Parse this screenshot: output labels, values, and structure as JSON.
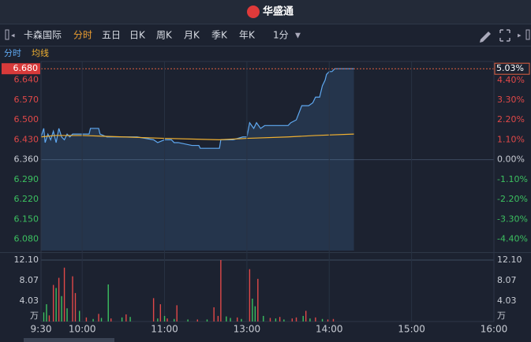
{
  "header": {
    "brand": "华盛通"
  },
  "toolbar": {
    "stock_name": "卡森国际",
    "tabs": [
      "分时",
      "五日",
      "日K",
      "周K",
      "月K",
      "季K",
      "年K"
    ],
    "interval": "1分"
  },
  "chart_data": [
    {
      "type": "line",
      "series": [
        {
          "name": "分时",
          "color": "#5fa8f0",
          "x": [
            0,
            2,
            3,
            5,
            7,
            9,
            11,
            13,
            15,
            17,
            19,
            21,
            23,
            25,
            30,
            35,
            36,
            42,
            43,
            48,
            55,
            70,
            82,
            85,
            90,
            95,
            97,
            100,
            110,
            115,
            116,
            130,
            131,
            140,
            147,
            150,
            152,
            155,
            157,
            160,
            163,
            170,
            180,
            182,
            186,
            190,
            195,
            198,
            200,
            203,
            205,
            207,
            208,
            210,
            212,
            214,
            228
          ],
          "values": [
            6.44,
            6.47,
            6.42,
            6.45,
            6.43,
            6.46,
            6.42,
            6.47,
            6.44,
            6.43,
            6.45,
            6.44,
            6.45,
            6.45,
            6.45,
            6.45,
            6.47,
            6.47,
            6.45,
            6.44,
            6.44,
            6.44,
            6.43,
            6.42,
            6.43,
            6.43,
            6.42,
            6.42,
            6.41,
            6.41,
            6.4,
            6.4,
            6.43,
            6.43,
            6.44,
            6.44,
            6.49,
            6.47,
            6.49,
            6.47,
            6.48,
            6.48,
            6.48,
            6.49,
            6.5,
            6.55,
            6.55,
            6.56,
            6.58,
            6.58,
            6.62,
            6.64,
            6.66,
            6.67,
            6.67,
            6.68,
            6.68
          ]
        },
        {
          "name": "均线",
          "color": "#f0b030",
          "x": [
            0,
            10,
            30,
            60,
            90,
            130,
            150,
            180,
            200,
            228
          ],
          "values": [
            6.44,
            6.445,
            6.445,
            6.44,
            6.435,
            6.43,
            6.435,
            6.44,
            6.445,
            6.45
          ]
        }
      ],
      "xlim": [
        0,
        330
      ],
      "ylim": [
        6.04,
        6.7
      ],
      "yticks": [
        {
          "value": 6.64,
          "label": "6.640"
        },
        {
          "value": 6.57,
          "label": "6.570"
        },
        {
          "value": 6.5,
          "label": "6.500"
        },
        {
          "value": 6.43,
          "label": "6.430"
        },
        {
          "value": 6.36,
          "label": "6.360"
        },
        {
          "value": 6.29,
          "label": "6.290"
        },
        {
          "value": 6.22,
          "label": "6.220"
        },
        {
          "value": 6.15,
          "label": "6.150"
        },
        {
          "value": 6.08,
          "label": "6.080"
        }
      ],
      "y2lim": [
        -5.03,
        5.35
      ],
      "y2ticks": [
        {
          "value": 4.4,
          "label": "4.40%"
        },
        {
          "value": 3.3,
          "label": "3.30%"
        },
        {
          "value": 2.2,
          "label": "2.20%"
        },
        {
          "value": 1.1,
          "label": "1.10%"
        },
        {
          "value": 0,
          "label": "0.00%"
        },
        {
          "value": -1.1,
          "label": "-1.10%"
        },
        {
          "value": -2.2,
          "label": "-2.20%"
        },
        {
          "value": -3.3,
          "label": "-3.30%"
        },
        {
          "value": -4.4,
          "label": "-4.40%"
        }
      ],
      "last_price": {
        "value": 6.68,
        "label": "6.680"
      },
      "last_change": {
        "value": 5.03,
        "label": "5.03%"
      }
    },
    {
      "type": "bar",
      "x": [
        2,
        4,
        6,
        9,
        11,
        13,
        15,
        17,
        19,
        23,
        25,
        28,
        33,
        38,
        42,
        44,
        49,
        51,
        59,
        62,
        65,
        82,
        85,
        87,
        90,
        92,
        97,
        99,
        107,
        114,
        121,
        126,
        129,
        131,
        135,
        138,
        143,
        146,
        152,
        154,
        156,
        158,
        162,
        167,
        171,
        174,
        177,
        183,
        186,
        191,
        193,
        196,
        200,
        205,
        209,
        213
      ],
      "values": [
        1.8,
        3.4,
        1.2,
        7.2,
        6.6,
        8.6,
        5.0,
        10.6,
        2.6,
        8.9,
        5.6,
        2.1,
        0.8,
        0.5,
        1.5,
        0.7,
        7.3,
        0.6,
        0.8,
        1.4,
        0.9,
        4.6,
        0.6,
        3.4,
        1.1,
        0.6,
        0.5,
        3.2,
        0.4,
        0.4,
        0.4,
        2.8,
        1.1,
        12.1,
        1.0,
        0.7,
        0.8,
        0.5,
        10.3,
        4.5,
        3.0,
        8.4,
        1.1,
        0.7,
        0.6,
        0.9,
        0.4,
        0.6,
        0.8,
        1.1,
        2.1,
        0.6,
        0.8,
        0.5,
        0.4,
        0.5
      ],
      "colors": [
        "#3cc060",
        "#3cc060",
        "#e04848",
        "#e04848",
        "#3cc060",
        "#e04848",
        "#3cc060",
        "#e04848",
        "#3cc060",
        "#e04848",
        "#e04848",
        "#3cc060",
        "#e04848",
        "#3cc060",
        "#e04848",
        "#3cc060",
        "#3cc060",
        "#e04848",
        "#3cc060",
        "#e04848",
        "#3cc060",
        "#e04848",
        "#3cc060",
        "#e04848",
        "#3cc060",
        "#e04848",
        "#3cc060",
        "#e04848",
        "#3cc060",
        "#e04848",
        "#3cc060",
        "#e04848",
        "#e04848",
        "#e04848",
        "#3cc060",
        "#3cc060",
        "#e04848",
        "#3cc060",
        "#e04848",
        "#3cc060",
        "#3cc060",
        "#e04848",
        "#3cc060",
        "#e04848",
        "#3cc060",
        "#e04848",
        "#3cc060",
        "#e04848",
        "#e04848",
        "#3cc060",
        "#e04848",
        "#3cc060",
        "#e04848",
        "#3cc060",
        "#e04848",
        "#e04848"
      ],
      "xlim": [
        0,
        330
      ],
      "ylim": [
        0,
        12.1
      ],
      "yticks": [
        4.03,
        8.07,
        {
          "value": 12.1,
          "label": "12.10"
        }
      ],
      "y_unit": "万",
      "xticks": [
        {
          "value": 0,
          "label": "9:30"
        },
        {
          "value": 30,
          "label": "10:00"
        },
        {
          "value": 90,
          "label": "11:00"
        },
        {
          "value": 150,
          "label": "13:00"
        },
        {
          "value": 210,
          "label": "14:00"
        },
        {
          "value": 270,
          "label": "15:00"
        },
        {
          "value": 330,
          "label": "16:00"
        }
      ]
    }
  ]
}
